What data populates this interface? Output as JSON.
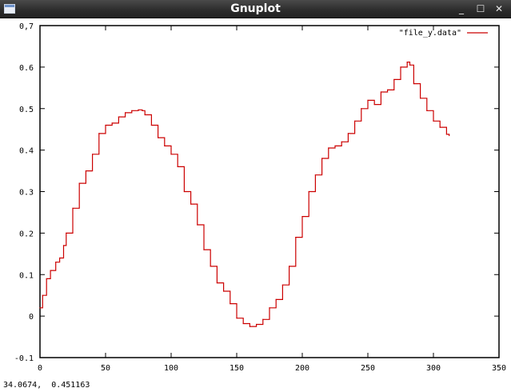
{
  "window": {
    "title": "Gnuplot",
    "icon": "app-window-icon",
    "controls": {
      "minimize": "_",
      "maximize": "☐",
      "close": "✕"
    }
  },
  "status_bar": {
    "coordinates": "34.0674,  0.451163"
  },
  "colors": {
    "line": "#cc0000",
    "axes": "#000000",
    "background": "#ffffff"
  },
  "chart_data": {
    "type": "line",
    "style": "steps",
    "title": "",
    "xlabel": "",
    "ylabel": "",
    "xlim": [
      0,
      350
    ],
    "ylim": [
      -0.1,
      0.7
    ],
    "xticks": [
      "0",
      "50",
      "100",
      "150",
      "200",
      "250",
      "300",
      "350"
    ],
    "yticks": [
      "-0.1",
      "0",
      "0.1",
      "0.2",
      "0.3",
      "0.4",
      "0.5",
      "0.6",
      "0,7"
    ],
    "grid": false,
    "legend_position": "top-right",
    "series": [
      {
        "name": "\"file_y.data\"",
        "x": [
          0,
          2,
          5,
          8,
          12,
          15,
          18,
          20,
          25,
          30,
          35,
          40,
          45,
          50,
          55,
          60,
          65,
          70,
          75,
          78,
          80,
          85,
          90,
          95,
          100,
          105,
          110,
          115,
          120,
          125,
          130,
          135,
          140,
          145,
          150,
          155,
          160,
          165,
          170,
          175,
          180,
          185,
          190,
          195,
          200,
          205,
          210,
          215,
          220,
          225,
          230,
          235,
          240,
          245,
          250,
          255,
          260,
          265,
          270,
          275,
          280,
          282,
          285,
          290,
          295,
          300,
          305,
          310,
          312
        ],
        "y": [
          0.02,
          0.05,
          0.09,
          0.11,
          0.13,
          0.14,
          0.17,
          0.2,
          0.26,
          0.32,
          0.35,
          0.39,
          0.44,
          0.46,
          0.465,
          0.48,
          0.49,
          0.495,
          0.497,
          0.495,
          0.485,
          0.46,
          0.43,
          0.41,
          0.39,
          0.36,
          0.3,
          0.27,
          0.22,
          0.16,
          0.12,
          0.08,
          0.06,
          0.03,
          -0.005,
          -0.018,
          -0.025,
          -0.02,
          -0.008,
          0.02,
          0.04,
          0.075,
          0.12,
          0.19,
          0.24,
          0.3,
          0.34,
          0.38,
          0.405,
          0.41,
          0.42,
          0.44,
          0.47,
          0.5,
          0.52,
          0.51,
          0.54,
          0.545,
          0.57,
          0.6,
          0.612,
          0.605,
          0.56,
          0.525,
          0.495,
          0.47,
          0.455,
          0.438,
          0.435
        ]
      }
    ]
  }
}
